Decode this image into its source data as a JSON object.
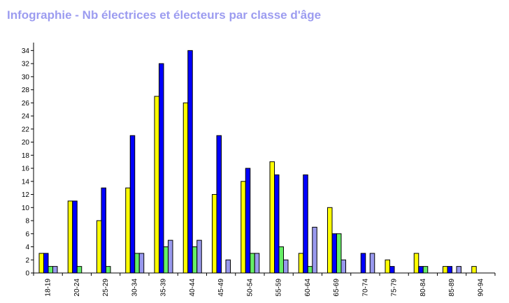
{
  "title": "Infographie - Nb électrices et électeurs par classe d'âge",
  "chart_data": {
    "type": "bar",
    "title": "Infographie - Nb électrices et électeurs par classe d'âge",
    "xlabel": "",
    "ylabel": "",
    "categories": [
      "18-19",
      "20-24",
      "25-29",
      "30-34",
      "35-39",
      "40-44",
      "45-49",
      "50-54",
      "55-59",
      "60-64",
      "65-69",
      "70-74",
      "75-79",
      "80-84",
      "85-89",
      "90-94"
    ],
    "ylim": [
      0,
      35
    ],
    "yticks": [
      0,
      2,
      4,
      6,
      8,
      10,
      12,
      14,
      16,
      18,
      20,
      22,
      24,
      26,
      28,
      30,
      32,
      34
    ],
    "grid": false,
    "legend": "none",
    "series": [
      {
        "color": "#ffff00",
        "values": [
          3,
          11,
          8,
          13,
          27,
          26,
          12,
          14,
          17,
          3,
          10,
          0,
          2,
          3,
          1,
          1
        ]
      },
      {
        "color": "#0000ff",
        "values": [
          3,
          11,
          13,
          21,
          32,
          34,
          21,
          16,
          15,
          15,
          6,
          3,
          1,
          1,
          1,
          0
        ]
      },
      {
        "color": "#66ee66",
        "values": [
          1,
          1,
          1,
          3,
          4,
          4,
          0,
          3,
          4,
          1,
          6,
          0,
          0,
          1,
          0,
          0
        ]
      },
      {
        "color": "#9999ee",
        "values": [
          1,
          0,
          0,
          3,
          5,
          5,
          2,
          3,
          2,
          7,
          2,
          3,
          0,
          0,
          1,
          0
        ]
      }
    ]
  }
}
